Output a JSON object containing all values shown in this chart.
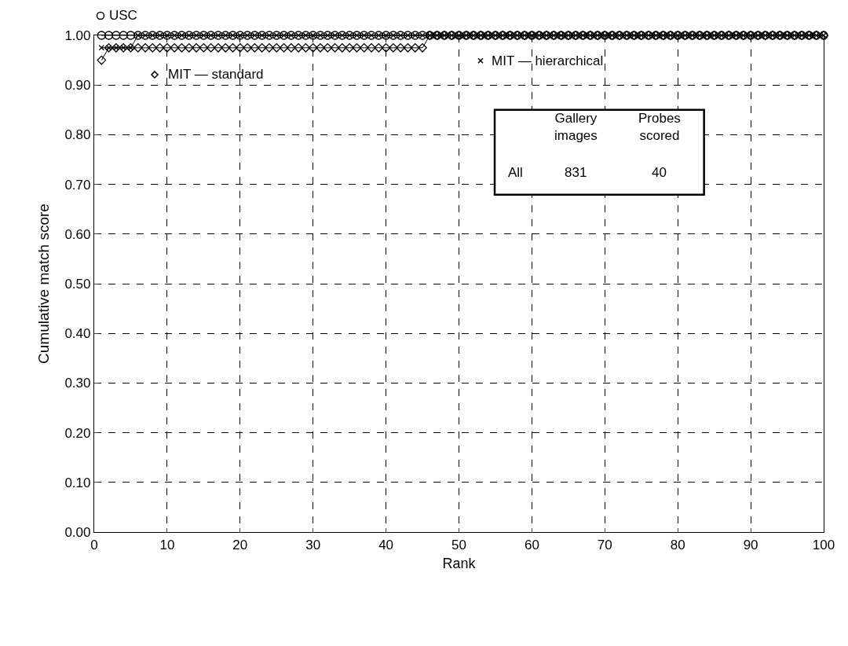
{
  "chart_data": {
    "type": "line",
    "xlabel": "Rank",
    "ylabel": "Cumulative match score",
    "x": [
      1,
      2,
      3,
      4,
      5,
      6,
      7,
      8,
      9,
      10,
      11,
      12,
      13,
      14,
      15,
      16,
      17,
      18,
      19,
      20,
      21,
      22,
      23,
      24,
      25,
      26,
      27,
      28,
      29,
      30,
      31,
      32,
      33,
      34,
      35,
      36,
      37,
      38,
      39,
      40,
      41,
      42,
      43,
      44,
      45,
      46,
      47,
      48,
      49,
      50,
      51,
      52,
      53,
      54,
      55,
      56,
      57,
      58,
      59,
      60,
      61,
      62,
      63,
      64,
      65,
      66,
      67,
      68,
      69,
      70,
      71,
      72,
      73,
      74,
      75,
      76,
      77,
      78,
      79,
      80,
      81,
      82,
      83,
      84,
      85,
      86,
      87,
      88,
      89,
      90,
      91,
      92,
      93,
      94,
      95,
      96,
      97,
      98,
      99,
      100
    ],
    "series": [
      {
        "name": "USC",
        "color": "#000000",
        "marker": "circle",
        "values": [
          1,
          1,
          1,
          1,
          1,
          1,
          1,
          1,
          1,
          1,
          1,
          1,
          1,
          1,
          1,
          1,
          1,
          1,
          1,
          1,
          1,
          1,
          1,
          1,
          1,
          1,
          1,
          1,
          1,
          1,
          1,
          1,
          1,
          1,
          1,
          1,
          1,
          1,
          1,
          1,
          1,
          1,
          1,
          1,
          1,
          1,
          1,
          1,
          1,
          1,
          1,
          1,
          1,
          1,
          1,
          1,
          1,
          1,
          1,
          1,
          1,
          1,
          1,
          1,
          1,
          1,
          1,
          1,
          1,
          1,
          1,
          1,
          1,
          1,
          1,
          1,
          1,
          1,
          1,
          1,
          1,
          1,
          1,
          1,
          1,
          1,
          1,
          1,
          1,
          1,
          1,
          1,
          1,
          1,
          1,
          1,
          1,
          1,
          1,
          1
        ]
      },
      {
        "name": "MIT — standard",
        "color": "#000000",
        "marker": "diamond",
        "values": [
          0.95,
          0.975,
          0.975,
          0.975,
          0.975,
          0.975,
          0.975,
          0.975,
          0.975,
          0.975,
          0.975,
          0.975,
          0.975,
          0.975,
          0.975,
          0.975,
          0.975,
          0.975,
          0.975,
          0.975,
          0.975,
          0.975,
          0.975,
          0.975,
          0.975,
          0.975,
          0.975,
          0.975,
          0.975,
          0.975,
          0.975,
          0.975,
          0.975,
          0.975,
          0.975,
          0.975,
          0.975,
          0.975,
          0.975,
          0.975,
          0.975,
          0.975,
          0.975,
          0.975,
          0.975,
          1,
          1,
          1,
          1,
          1,
          1,
          1,
          1,
          1,
          1,
          1,
          1,
          1,
          1,
          1,
          1,
          1,
          1,
          1,
          1,
          1,
          1,
          1,
          1,
          1,
          1,
          1,
          1,
          1,
          1,
          1,
          1,
          1,
          1,
          1,
          1,
          1,
          1,
          1,
          1,
          1,
          1,
          1,
          1,
          1,
          1,
          1,
          1,
          1,
          1,
          1,
          1,
          1,
          1,
          1
        ]
      },
      {
        "name": "MIT — hierarchical",
        "color": "#000000",
        "marker": "cross",
        "values": [
          0.975,
          0.975,
          0.975,
          0.975,
          0.975,
          1,
          1,
          1,
          1,
          1,
          1,
          1,
          1,
          1,
          1,
          1,
          1,
          1,
          1,
          1,
          1,
          1,
          1,
          1,
          1,
          1,
          1,
          1,
          1,
          1,
          1,
          1,
          1,
          1,
          1,
          1,
          1,
          1,
          1,
          1,
          1,
          1,
          1,
          1,
          1,
          1,
          1,
          1,
          1,
          1,
          1,
          1,
          1,
          1,
          1,
          1,
          1,
          1,
          1,
          1,
          1,
          1,
          1,
          1,
          1,
          1,
          1,
          1,
          1,
          1,
          1,
          1,
          1,
          1,
          1,
          1,
          1,
          1,
          1,
          1,
          1,
          1,
          1,
          1,
          1,
          1,
          1,
          1,
          1,
          1,
          1,
          1,
          1,
          1,
          1,
          1,
          1,
          1,
          1,
          1
        ]
      }
    ],
    "xlim": [
      0,
      100
    ],
    "xticks": [
      0,
      10,
      20,
      30,
      40,
      50,
      60,
      70,
      80,
      90,
      100
    ],
    "ylim": [
      0,
      1
    ],
    "yticks": [
      {
        "value": 0,
        "label": "0.00"
      },
      {
        "value": 0.1,
        "label": "0.10"
      },
      {
        "value": 0.2,
        "label": "0.20"
      },
      {
        "value": 0.3,
        "label": "0.30"
      },
      {
        "value": 0.4,
        "label": "0.40"
      },
      {
        "value": 0.5,
        "label": "0.50"
      },
      {
        "value": 0.6,
        "label": "0.60"
      },
      {
        "value": 0.7,
        "label": "0.70"
      },
      {
        "value": 0.8,
        "label": "0.80"
      },
      {
        "value": 0.9,
        "label": "0.90"
      },
      {
        "value": 1,
        "label": "1.00"
      }
    ],
    "grid": true,
    "legend": "top left",
    "line_style": "solid",
    "annotations": [
      "Gallery images",
      "Probes scored",
      "All",
      "831",
      "40"
    ]
  }
}
